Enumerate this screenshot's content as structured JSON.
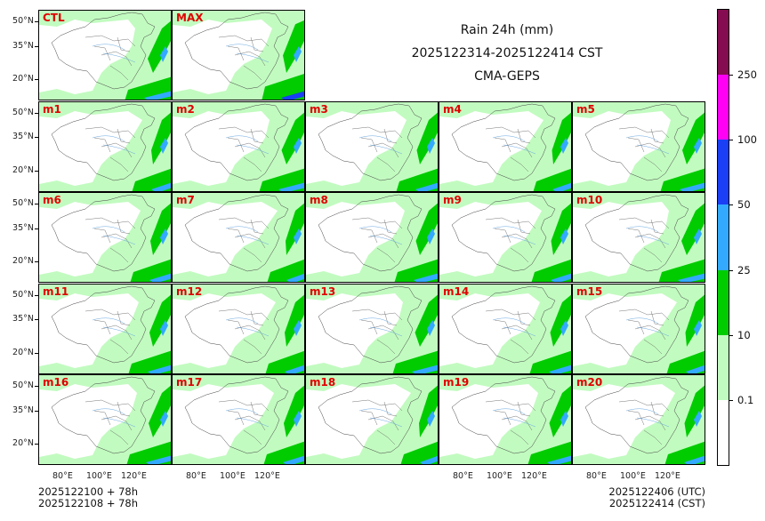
{
  "title": {
    "line1": "Rain 24h (mm)",
    "line2": "2025122314-2025122414 CST",
    "line3": "CMA-GEPS"
  },
  "panels": [
    "CTL",
    "MAX",
    "m1",
    "m2",
    "m3",
    "m4",
    "m5",
    "m6",
    "m7",
    "m8",
    "m9",
    "m10",
    "m11",
    "m12",
    "m13",
    "m14",
    "m15",
    "m16",
    "m17",
    "m18",
    "m19",
    "m20"
  ],
  "y_ticks": [
    "50°N",
    "35°N",
    "20°N"
  ],
  "x_ticks": [
    "80°E",
    "100°E",
    "120°E"
  ],
  "footer": {
    "left_line1": "2025122100 + 78h",
    "left_line2": "2025122108 + 78h",
    "right_line1": "2025122406 (UTC)",
    "right_line2": "2025122414 (CST)"
  },
  "colorbar": {
    "labels": [
      "0.1",
      "10",
      "25",
      "50",
      "100",
      "250"
    ],
    "colors": [
      "#ffffff",
      "#c2fbc0",
      "#00cc00",
      "#33aaff",
      "#1a3ff5",
      "#ff00f5",
      "#850c50"
    ]
  }
}
